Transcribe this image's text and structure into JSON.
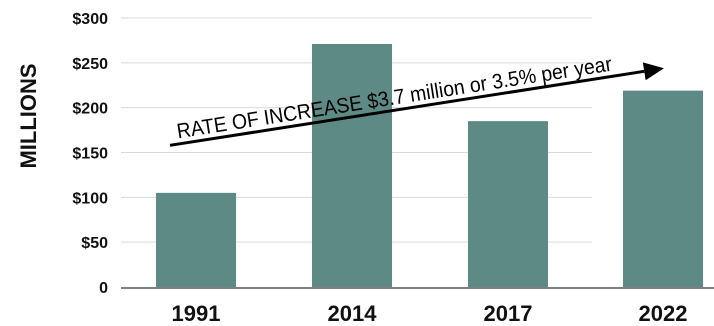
{
  "chart_data": {
    "type": "bar",
    "categories": [
      "1991",
      "2014",
      "2017",
      "2022"
    ],
    "values": [
      105,
      271,
      185,
      219
    ],
    "ylabel": "MILLIONS",
    "xlabel": "",
    "title": "",
    "ylim": [
      0,
      300
    ],
    "yticks": [
      0,
      50,
      100,
      150,
      200,
      250,
      300
    ],
    "ytick_labels": [
      "0",
      "$50",
      "$100",
      "$150",
      "$200",
      "$250",
      "$300"
    ],
    "grid": true,
    "legend": "none",
    "bar_color": "#5d8a84",
    "annotation": {
      "text": "RATE OF INCREASE $3.7 million or 3.5% per year",
      "start_value": 158,
      "end_value": 244,
      "arrow": true
    }
  }
}
